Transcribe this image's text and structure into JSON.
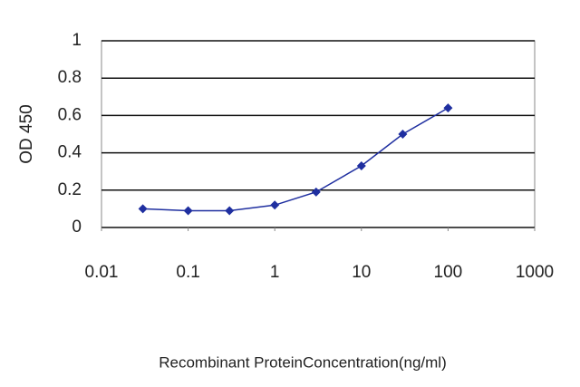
{
  "chart_data": {
    "type": "line",
    "x_label": "Recombinant ProteinConcentration(ng/ml)",
    "y_label": "OD 450",
    "x": [
      0.03,
      0.1,
      0.3,
      1,
      3,
      10,
      30,
      100
    ],
    "series": [
      {
        "color": "#1f2fa0",
        "values": [
          0.1,
          0.09,
          0.09,
          0.12,
          0.19,
          0.33,
          0.5,
          0.64
        ]
      }
    ],
    "xscale": "log",
    "xlim": [
      0.01,
      1000
    ],
    "xticks": [
      0.01,
      0.1,
      1,
      10,
      100,
      1000
    ],
    "ylim": [
      0,
      1
    ],
    "yticks": [
      0,
      0.2,
      0.4,
      0.6,
      0.8,
      1
    ],
    "grid": true
  }
}
